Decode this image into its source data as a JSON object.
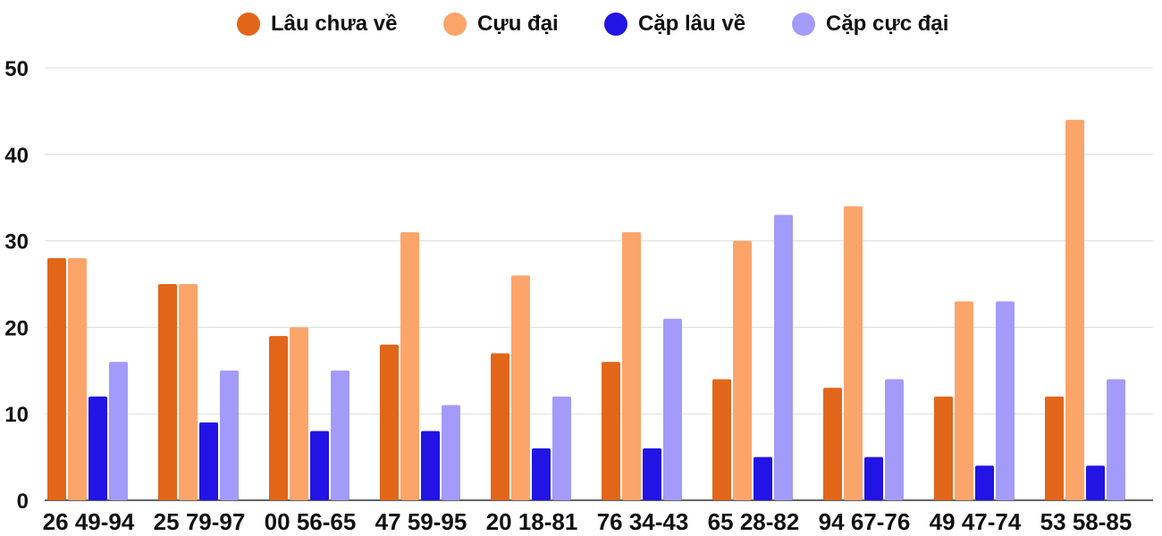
{
  "chart_data": {
    "type": "bar",
    "categories": [
      "26 49-94",
      "25 79-97",
      "00 56-65",
      "47 59-95",
      "20 18-81",
      "76 34-43",
      "65 28-82",
      "94 67-76",
      "49 47-74",
      "53 58-85"
    ],
    "series": [
      {
        "name": "Lâu chưa về",
        "color": "#e2661a",
        "values": [
          28,
          25,
          19,
          18,
          17,
          16,
          14,
          13,
          12,
          12
        ]
      },
      {
        "name": "Cựu đại",
        "color": "#fba56b",
        "values": [
          28,
          25,
          20,
          31,
          26,
          31,
          30,
          34,
          23,
          44
        ]
      },
      {
        "name": "Cặp lâu về",
        "color": "#2114e4",
        "values": [
          12,
          9,
          8,
          8,
          6,
          6,
          5,
          5,
          4,
          4
        ]
      },
      {
        "name": "Cặp cực đại",
        "color": "#a39bfa",
        "values": [
          16,
          15,
          15,
          11,
          12,
          21,
          33,
          14,
          23,
          14
        ]
      }
    ],
    "ylim": [
      0,
      50
    ],
    "yticks": [
      0,
      10,
      20,
      30,
      40,
      50
    ],
    "grid": true,
    "legend_position": "top-center"
  }
}
